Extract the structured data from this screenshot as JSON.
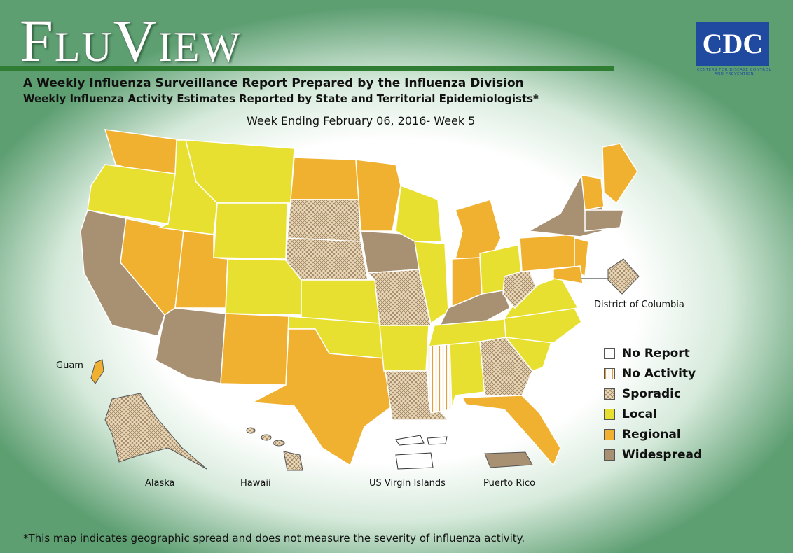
{
  "header": {
    "logo": "FluView",
    "agency": "CDC",
    "agency_name": "Centers for Disease Control and Prevention",
    "title": "A Weekly Influenza Surveillance Report Prepared by the Influenza Division",
    "subtitle": "Weekly Influenza Activity Estimates Reported by State and Territorial Epidemiologists*",
    "week": "Week Ending February 06, 2016- Week 5"
  },
  "legend": [
    {
      "label": "No Report",
      "color": "#ffffff"
    },
    {
      "label": "No Activity",
      "color": "url(#noact)"
    },
    {
      "label": "Sporadic",
      "color": "url(#spor)"
    },
    {
      "label": "Local",
      "color": "#e8e030"
    },
    {
      "label": "Regional",
      "color": "#f0b030"
    },
    {
      "label": "Widespread",
      "color": "#a89072"
    }
  ],
  "map": {
    "labels": [
      "District of Columbia",
      "Guam",
      "Alaska",
      "Hawaii",
      "US Virgin Islands",
      "Puerto Rico"
    ]
  },
  "footnote": "*This map indicates geographic spread and does not measure the severity of influenza activity."
}
